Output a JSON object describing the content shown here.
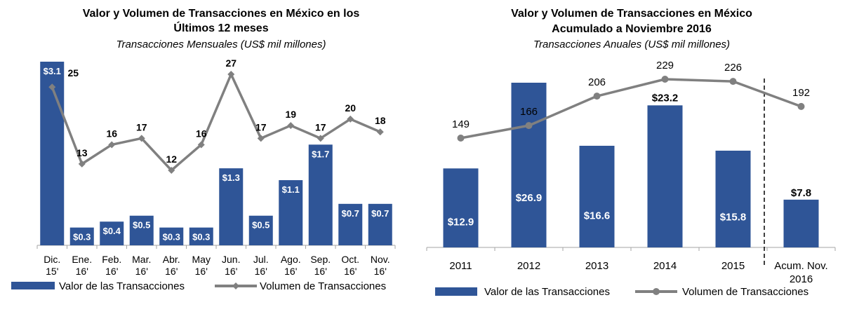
{
  "colors": {
    "bar": "#2F5597",
    "line": "#808080",
    "axis": "#a6a6a6",
    "bar_label": "#ffffff",
    "text": "#000000"
  },
  "chart_data": [
    {
      "type": "bar+line",
      "title_line1": "Valor y Volumen de Transacciones en México en los",
      "title_line2": "Últimos 12 meses",
      "subtitle": "Transacciones Mensuales (US$ mil millones)",
      "categories": [
        [
          "Dic.",
          "15'"
        ],
        [
          "Ene.",
          "16'"
        ],
        [
          "Feb.",
          "16'"
        ],
        [
          "Mar.",
          "16'"
        ],
        [
          "Abr.",
          "16'"
        ],
        [
          "May",
          "16'"
        ],
        [
          "Jun.",
          "16'"
        ],
        [
          "Jul.",
          "16'"
        ],
        [
          "Ago.",
          "16'"
        ],
        [
          "Sep.",
          "16'"
        ],
        [
          "Oct.",
          "16'"
        ],
        [
          "Nov.",
          "16'"
        ]
      ],
      "series": [
        {
          "name": "Valor de las Transacciones",
          "kind": "bar",
          "values": [
            3.1,
            0.3,
            0.4,
            0.5,
            0.3,
            0.3,
            1.3,
            0.5,
            1.1,
            1.7,
            0.7,
            0.7
          ],
          "labels": [
            "$3.1",
            "$0.3",
            "$0.4",
            "$0.5",
            "$0.3",
            "$0.3",
            "$1.3",
            "$0.5",
            "$1.1",
            "$1.7",
            "$0.7",
            "$0.7"
          ]
        },
        {
          "name": "Volumen de Transacciones",
          "kind": "line",
          "values": [
            25,
            13,
            16,
            17,
            12,
            16,
            27,
            17,
            19,
            17,
            20,
            18
          ],
          "labels": [
            "25",
            "13",
            "16",
            "17",
            "12",
            "16",
            "27",
            "17",
            "19",
            "17",
            "20",
            "18"
          ]
        }
      ],
      "legend": "bottom",
      "grid": false
    },
    {
      "type": "bar+line",
      "title_line1": "Valor y Volumen de Transacciones en México",
      "title_line2": "Acumulado a Noviembre 2016",
      "subtitle": "Transacciones Anuales (US$ mil millones)",
      "categories": [
        [
          "2011"
        ],
        [
          "2012"
        ],
        [
          "2013"
        ],
        [
          "2014"
        ],
        [
          "2015"
        ],
        [
          "Acum. Nov.",
          "2016"
        ]
      ],
      "series": [
        {
          "name": "Valor de las Transacciones",
          "kind": "bar",
          "values": [
            12.9,
            26.9,
            16.6,
            23.2,
            15.8,
            7.8
          ],
          "labels": [
            "$12.9",
            "$26.9",
            "$16.6",
            "$23.2",
            "$15.8",
            "$7.8"
          ]
        },
        {
          "name": "Volumen de Transacciones",
          "kind": "line",
          "values": [
            149,
            166,
            206,
            229,
            226,
            192
          ],
          "labels": [
            "149",
            "166",
            "206",
            "229",
            "226",
            "192"
          ]
        }
      ],
      "separator": "dashed line before last category",
      "legend": "bottom",
      "grid": false
    }
  ]
}
